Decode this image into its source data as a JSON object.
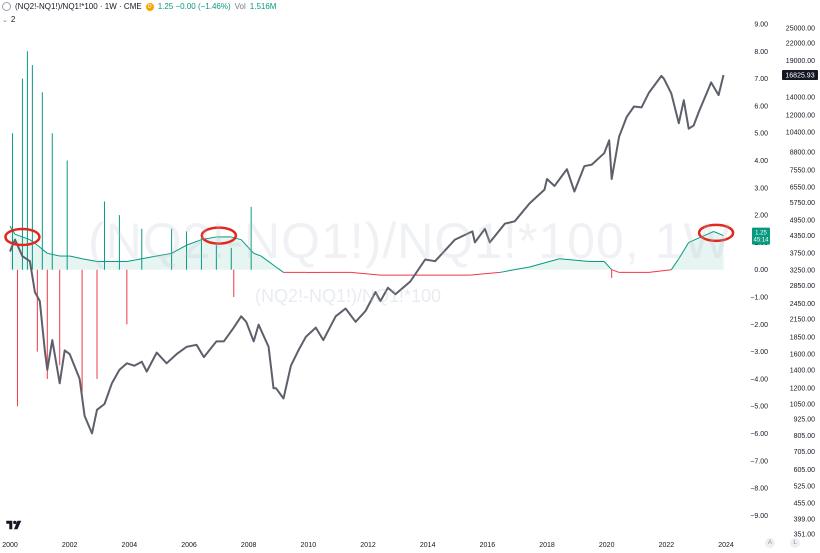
{
  "header": {
    "symbol": "(NQ2!-NQ1!)/NQ1!*100 · 1W · CME",
    "source_badge": "D",
    "ohlc": "1.25 −0.00 (−1.46%)",
    "volume_label": "Vol",
    "volume_value": "1.516M",
    "indicator_count": "2"
  },
  "watermark": {
    "large": "(NQ2!-NQ1!)/NQ1!*100, 1W",
    "small": "(NQ2!-NQ1!)/NQ1!*100"
  },
  "colors": {
    "positive": "#089981",
    "negative": "#f23645",
    "price_line": "#5d606b",
    "highlight": "#e0281e"
  },
  "axis_buttons": {
    "auto": "A",
    "log": "L"
  },
  "chart_data": [
    {
      "type": "line",
      "series": [
        {
          "name": "NQ1!",
          "points": [
            [
              "2000-01",
              3800
            ],
            [
              "2000-03",
              4200
            ],
            [
              "2000-06",
              3650
            ],
            [
              "2000-09",
              3500
            ],
            [
              "2000-11",
              2700
            ],
            [
              "2001-01",
              2500
            ],
            [
              "2001-03",
              1650
            ],
            [
              "2001-04",
              1400
            ],
            [
              "2001-06",
              1800
            ],
            [
              "2001-09",
              1250
            ],
            [
              "2001-11",
              1650
            ],
            [
              "2002-01",
              1600
            ],
            [
              "2002-05",
              1300
            ],
            [
              "2002-07",
              950
            ],
            [
              "2002-10",
              820
            ],
            [
              "2002-12",
              1000
            ],
            [
              "2003-03",
              1050
            ],
            [
              "2003-06",
              1250
            ],
            [
              "2003-09",
              1400
            ],
            [
              "2003-12",
              1480
            ],
            [
              "2004-03",
              1450
            ],
            [
              "2004-06",
              1500
            ],
            [
              "2004-08",
              1380
            ],
            [
              "2004-12",
              1620
            ],
            [
              "2005-04",
              1480
            ],
            [
              "2005-08",
              1600
            ],
            [
              "2005-12",
              1700
            ],
            [
              "2006-04",
              1730
            ],
            [
              "2006-07",
              1560
            ],
            [
              "2006-12",
              1780
            ],
            [
              "2007-03",
              1780
            ],
            [
              "2007-07",
              2000
            ],
            [
              "2007-10",
              2200
            ],
            [
              "2007-12",
              2100
            ],
            [
              "2008-03",
              1780
            ],
            [
              "2008-05",
              2050
            ],
            [
              "2008-09",
              1700
            ],
            [
              "2008-11",
              1200
            ],
            [
              "2008-12",
              1200
            ],
            [
              "2009-03",
              1100
            ],
            [
              "2009-06",
              1450
            ],
            [
              "2009-09",
              1650
            ],
            [
              "2009-12",
              1850
            ],
            [
              "2010-04",
              2000
            ],
            [
              "2010-07",
              1800
            ],
            [
              "2010-12",
              2200
            ],
            [
              "2011-04",
              2350
            ],
            [
              "2011-08",
              2100
            ],
            [
              "2011-12",
              2300
            ],
            [
              "2012-04",
              2700
            ],
            [
              "2012-06",
              2500
            ],
            [
              "2012-09",
              2800
            ],
            [
              "2012-12",
              2650
            ],
            [
              "2013-06",
              2950
            ],
            [
              "2013-12",
              3550
            ],
            [
              "2014-04",
              3500
            ],
            [
              "2014-12",
              4200
            ],
            [
              "2015-07",
              4500
            ],
            [
              "2015-08",
              4100
            ],
            [
              "2015-12",
              4600
            ],
            [
              "2016-02",
              4100
            ],
            [
              "2016-08",
              4800
            ],
            [
              "2016-12",
              4900
            ],
            [
              "2017-06",
              5700
            ],
            [
              "2017-12",
              6400
            ],
            [
              "2018-01",
              7000
            ],
            [
              "2018-04",
              6600
            ],
            [
              "2018-09",
              7600
            ],
            [
              "2018-12",
              6300
            ],
            [
              "2019-04",
              7800
            ],
            [
              "2019-07",
              7900
            ],
            [
              "2019-12",
              8700
            ],
            [
              "2020-02",
              9700
            ],
            [
              "2020-03",
              7000
            ],
            [
              "2020-06",
              10000
            ],
            [
              "2020-09",
              11800
            ],
            [
              "2020-12",
              12900
            ],
            [
              "2021-03",
              12800
            ],
            [
              "2021-06",
              14500
            ],
            [
              "2021-11",
              16700
            ],
            [
              "2021-12",
              16300
            ],
            [
              "2022-03",
              14400
            ],
            [
              "2022-06",
              11200
            ],
            [
              "2022-08",
              13600
            ],
            [
              "2022-10",
              10700
            ],
            [
              "2022-12",
              11000
            ],
            [
              "2023-02",
              12300
            ],
            [
              "2023-06",
              15000
            ],
            [
              "2023-07",
              15800
            ],
            [
              "2023-10",
              14200
            ],
            [
              "2023-12",
              16825.93
            ]
          ]
        },
        {
          "name": "(NQ2!-NQ1!)/NQ1!*100",
          "points": [
            [
              "2000-01",
              1.6
            ],
            [
              "2000-03",
              1.3
            ],
            [
              "2000-06",
              1.2
            ],
            [
              "2000-09",
              1.1
            ],
            [
              "2000-12",
              0.9
            ],
            [
              "2001-04",
              0.6
            ],
            [
              "2001-09",
              0.5
            ],
            [
              "2002-01",
              0.5
            ],
            [
              "2002-06",
              0.4
            ],
            [
              "2002-12",
              0.3
            ],
            [
              "2003-06",
              0.3
            ],
            [
              "2003-12",
              0.3
            ],
            [
              "2004-06",
              0.4
            ],
            [
              "2004-12",
              0.5
            ],
            [
              "2005-06",
              0.6
            ],
            [
              "2005-12",
              0.9
            ],
            [
              "2006-06",
              1.1
            ],
            [
              "2006-12",
              1.2
            ],
            [
              "2007-06",
              1.2
            ],
            [
              "2007-10",
              1.1
            ],
            [
              "2008-03",
              0.6
            ],
            [
              "2008-06",
              0.5
            ],
            [
              "2008-12",
              0.1
            ],
            [
              "2009-03",
              -0.1
            ],
            [
              "2009-12",
              -0.1
            ],
            [
              "2010-06",
              -0.1
            ],
            [
              "2011-06",
              -0.1
            ],
            [
              "2012-06",
              -0.2
            ],
            [
              "2013-06",
              -0.2
            ],
            [
              "2014-06",
              -0.2
            ],
            [
              "2015-06",
              -0.2
            ],
            [
              "2016-06",
              -0.1
            ],
            [
              "2017-06",
              0.1
            ],
            [
              "2018-06",
              0.4
            ],
            [
              "2019-06",
              0.3
            ],
            [
              "2019-12",
              0.3
            ],
            [
              "2020-03",
              0.0
            ],
            [
              "2020-06",
              -0.1
            ],
            [
              "2021-06",
              -0.1
            ],
            [
              "2022-03",
              0.0
            ],
            [
              "2022-06",
              0.4
            ],
            [
              "2022-10",
              1.0
            ],
            [
              "2023-03",
              1.2
            ],
            [
              "2023-08",
              1.4
            ],
            [
              "2023-12",
              1.25
            ]
          ],
          "spikes": [
            [
              "2000-02",
              5.0
            ],
            [
              "2000-04",
              -5.0
            ],
            [
              "2000-06",
              7.0
            ],
            [
              "2000-08",
              8.0
            ],
            [
              "2000-10",
              7.5
            ],
            [
              "2000-12",
              -3.0
            ],
            [
              "2001-02",
              6.5
            ],
            [
              "2001-04",
              -4.0
            ],
            [
              "2001-06",
              5.0
            ],
            [
              "2001-09",
              -3.5
            ],
            [
              "2001-12",
              4.0
            ],
            [
              "2002-06",
              -4.5
            ],
            [
              "2002-12",
              -4.0
            ],
            [
              "2003-03",
              2.5
            ],
            [
              "2003-09",
              2.0
            ],
            [
              "2003-12",
              -2.0
            ],
            [
              "2004-06",
              1.5
            ],
            [
              "2005-06",
              1.5
            ],
            [
              "2005-12",
              1.4
            ],
            [
              "2006-06",
              1.2
            ],
            [
              "2006-12",
              0.9
            ],
            [
              "2007-06",
              0.8
            ],
            [
              "2007-07",
              -1.0
            ],
            [
              "2008-02",
              2.3
            ],
            [
              "2020-03",
              -0.3
            ]
          ]
        }
      ],
      "x_ticks": [
        "2000",
        "2002",
        "2004",
        "2006",
        "2008",
        "2010",
        "2012",
        "2014",
        "2016",
        "2018",
        "2020",
        "2022",
        "2024"
      ],
      "y_ticks_right": [
        "25000.00",
        "22000.00",
        "19000.00",
        "16825.93",
        "14000.00",
        "12000.00",
        "10400.00",
        "8800.00",
        "7550.00",
        "6550.00",
        "5750.00",
        "4950.00",
        "4350.00",
        "3750.00",
        "3250.00",
        "2850.00",
        "2450.00",
        "2150.00",
        "1850.00",
        "1600.00",
        "1400.00",
        "1200.00",
        "1050.00",
        "925.00",
        "805.00",
        "705.00",
        "605.00",
        "525.00",
        "455.00",
        "399.00",
        "351.00"
      ],
      "y_ticks_left": [
        "9.00",
        "8.00",
        "7.00",
        "6.00",
        "5.00",
        "4.00",
        "3.00",
        "2.00",
        "1.00",
        "0.00",
        "−1.00",
        "−2.00",
        "−3.00",
        "−4.00",
        "−5.00",
        "−6.00",
        "−7.00",
        "−8.00",
        "−9.00"
      ],
      "last_price": "16825.93",
      "last_spread": "1.25",
      "countdown": "45:14",
      "y_scale": "log",
      "grid": false
    }
  ]
}
